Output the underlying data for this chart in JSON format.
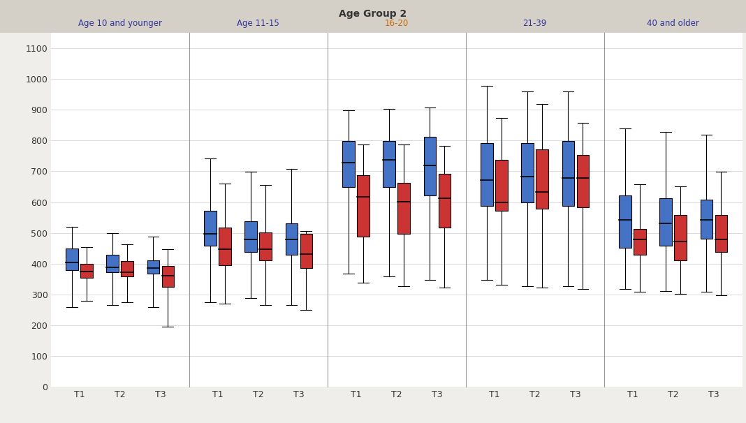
{
  "title": "Age Group 2",
  "title_fontsize": 10,
  "title_fontweight": "bold",
  "title_color": "#333333",
  "background_color": "#f0eeeb",
  "plot_bg_color": "#ffffff",
  "panel_header_color": "#d4d0c8",
  "ylim": [
    0,
    1150
  ],
  "yticks": [
    0,
    100,
    200,
    300,
    400,
    500,
    600,
    700,
    800,
    900,
    1000,
    1100
  ],
  "groups": [
    "Age 10 and younger",
    "Age 11-15",
    "16-20",
    "21-39",
    "40 and older"
  ],
  "group_label_colors": [
    "#333399",
    "#333399",
    "#cc6600",
    "#333399",
    "#333399"
  ],
  "time_labels": [
    "T1",
    "T2",
    "T3"
  ],
  "blue_color": "#4472c4",
  "red_color": "#cc3333",
  "box_data": {
    "Age 10 and younger": {
      "T1": {
        "blue": {
          "whisker_low": 260,
          "q1": 380,
          "median": 405,
          "q3": 450,
          "whisker_high": 520
        },
        "red": {
          "whisker_low": 280,
          "q1": 355,
          "median": 375,
          "q3": 400,
          "whisker_high": 455
        }
      },
      "T2": {
        "blue": {
          "whisker_low": 265,
          "q1": 372,
          "median": 388,
          "q3": 430,
          "whisker_high": 500
        },
        "red": {
          "whisker_low": 275,
          "q1": 358,
          "median": 372,
          "q3": 408,
          "whisker_high": 462
        }
      },
      "T3": {
        "blue": {
          "whisker_low": 260,
          "q1": 368,
          "median": 385,
          "q3": 412,
          "whisker_high": 488
        },
        "red": {
          "whisker_low": 195,
          "q1": 325,
          "median": 362,
          "q3": 392,
          "whisker_high": 448
        }
      }
    },
    "Age 11-15": {
      "T1": {
        "blue": {
          "whisker_low": 275,
          "q1": 458,
          "median": 498,
          "q3": 572,
          "whisker_high": 742
        },
        "red": {
          "whisker_low": 270,
          "q1": 395,
          "median": 448,
          "q3": 518,
          "whisker_high": 660
        }
      },
      "T2": {
        "blue": {
          "whisker_low": 288,
          "q1": 438,
          "median": 478,
          "q3": 538,
          "whisker_high": 698
        },
        "red": {
          "whisker_low": 265,
          "q1": 412,
          "median": 448,
          "q3": 502,
          "whisker_high": 655
        }
      },
      "T3": {
        "blue": {
          "whisker_low": 265,
          "q1": 428,
          "median": 478,
          "q3": 532,
          "whisker_high": 708
        },
        "red": {
          "whisker_low": 250,
          "q1": 385,
          "median": 432,
          "q3": 498,
          "whisker_high": 505
        }
      }
    },
    "16-20": {
      "T1": {
        "blue": {
          "whisker_low": 368,
          "q1": 648,
          "median": 728,
          "q3": 798,
          "whisker_high": 898
        },
        "red": {
          "whisker_low": 338,
          "q1": 488,
          "median": 618,
          "q3": 688,
          "whisker_high": 788
        }
      },
      "T2": {
        "blue": {
          "whisker_low": 358,
          "q1": 648,
          "median": 738,
          "q3": 798,
          "whisker_high": 902
        },
        "red": {
          "whisker_low": 328,
          "q1": 498,
          "median": 602,
          "q3": 662,
          "whisker_high": 788
        }
      },
      "T3": {
        "blue": {
          "whisker_low": 348,
          "q1": 622,
          "median": 718,
          "q3": 812,
          "whisker_high": 908
        },
        "red": {
          "whisker_low": 322,
          "q1": 518,
          "median": 612,
          "q3": 692,
          "whisker_high": 782
        }
      }
    },
    "21-39": {
      "T1": {
        "blue": {
          "whisker_low": 348,
          "q1": 588,
          "median": 672,
          "q3": 792,
          "whisker_high": 978
        },
        "red": {
          "whisker_low": 332,
          "q1": 572,
          "median": 598,
          "q3": 738,
          "whisker_high": 872
        }
      },
      "T2": {
        "blue": {
          "whisker_low": 328,
          "q1": 598,
          "median": 682,
          "q3": 792,
          "whisker_high": 958
        },
        "red": {
          "whisker_low": 322,
          "q1": 578,
          "median": 632,
          "q3": 772,
          "whisker_high": 918
        }
      },
      "T3": {
        "blue": {
          "whisker_low": 328,
          "q1": 588,
          "median": 678,
          "q3": 798,
          "whisker_high": 958
        },
        "red": {
          "whisker_low": 318,
          "q1": 582,
          "median": 678,
          "q3": 752,
          "whisker_high": 858
        }
      }
    },
    "40 and older": {
      "T1": {
        "blue": {
          "whisker_low": 318,
          "q1": 452,
          "median": 542,
          "q3": 622,
          "whisker_high": 838
        },
        "red": {
          "whisker_low": 308,
          "q1": 428,
          "median": 478,
          "q3": 512,
          "whisker_high": 658
        }
      },
      "T2": {
        "blue": {
          "whisker_low": 312,
          "q1": 458,
          "median": 532,
          "q3": 612,
          "whisker_high": 828
        },
        "red": {
          "whisker_low": 302,
          "q1": 412,
          "median": 472,
          "q3": 558,
          "whisker_high": 652
        }
      },
      "T3": {
        "blue": {
          "whisker_low": 308,
          "q1": 482,
          "median": 542,
          "q3": 608,
          "whisker_high": 818
        },
        "red": {
          "whisker_low": 298,
          "q1": 438,
          "median": 478,
          "q3": 558,
          "whisker_high": 698
        }
      }
    }
  }
}
